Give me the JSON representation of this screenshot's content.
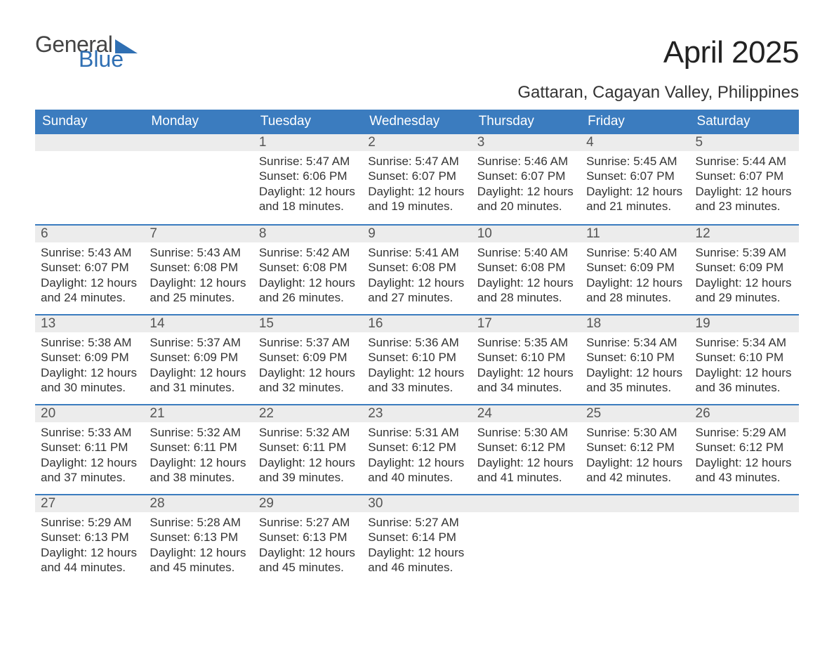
{
  "brand": {
    "word1": "General",
    "word2": "Blue"
  },
  "title": "April 2025",
  "location": "Gattaran, Cagayan Valley, Philippines",
  "colors": {
    "header_bg": "#3b7cbf",
    "header_text": "#ffffff",
    "week_border": "#3b7cbf",
    "daynum_bg": "#ececec",
    "daynum_text": "#555555",
    "body_text": "#333333",
    "background": "#ffffff",
    "logo_blue": "#2f6fb3",
    "logo_gray": "#444444"
  },
  "typography": {
    "title_fontsize": 44,
    "subtitle_fontsize": 24,
    "header_fontsize": 19,
    "daynum_fontsize": 19,
    "body_fontsize": 17,
    "logo_fontsize": 32
  },
  "day_labels": [
    "Sunday",
    "Monday",
    "Tuesday",
    "Wednesday",
    "Thursday",
    "Friday",
    "Saturday"
  ],
  "labels": {
    "sunrise": "Sunrise:",
    "sunset": "Sunset:",
    "daylight": "Daylight:"
  },
  "weeks": [
    [
      null,
      null,
      {
        "n": "1",
        "sunrise": "5:47 AM",
        "sunset": "6:06 PM",
        "daylight": "12 hours and 18 minutes."
      },
      {
        "n": "2",
        "sunrise": "5:47 AM",
        "sunset": "6:07 PM",
        "daylight": "12 hours and 19 minutes."
      },
      {
        "n": "3",
        "sunrise": "5:46 AM",
        "sunset": "6:07 PM",
        "daylight": "12 hours and 20 minutes."
      },
      {
        "n": "4",
        "sunrise": "5:45 AM",
        "sunset": "6:07 PM",
        "daylight": "12 hours and 21 minutes."
      },
      {
        "n": "5",
        "sunrise": "5:44 AM",
        "sunset": "6:07 PM",
        "daylight": "12 hours and 23 minutes."
      }
    ],
    [
      {
        "n": "6",
        "sunrise": "5:43 AM",
        "sunset": "6:07 PM",
        "daylight": "12 hours and 24 minutes."
      },
      {
        "n": "7",
        "sunrise": "5:43 AM",
        "sunset": "6:08 PM",
        "daylight": "12 hours and 25 minutes."
      },
      {
        "n": "8",
        "sunrise": "5:42 AM",
        "sunset": "6:08 PM",
        "daylight": "12 hours and 26 minutes."
      },
      {
        "n": "9",
        "sunrise": "5:41 AM",
        "sunset": "6:08 PM",
        "daylight": "12 hours and 27 minutes."
      },
      {
        "n": "10",
        "sunrise": "5:40 AM",
        "sunset": "6:08 PM",
        "daylight": "12 hours and 28 minutes."
      },
      {
        "n": "11",
        "sunrise": "5:40 AM",
        "sunset": "6:09 PM",
        "daylight": "12 hours and 28 minutes."
      },
      {
        "n": "12",
        "sunrise": "5:39 AM",
        "sunset": "6:09 PM",
        "daylight": "12 hours and 29 minutes."
      }
    ],
    [
      {
        "n": "13",
        "sunrise": "5:38 AM",
        "sunset": "6:09 PM",
        "daylight": "12 hours and 30 minutes."
      },
      {
        "n": "14",
        "sunrise": "5:37 AM",
        "sunset": "6:09 PM",
        "daylight": "12 hours and 31 minutes."
      },
      {
        "n": "15",
        "sunrise": "5:37 AM",
        "sunset": "6:09 PM",
        "daylight": "12 hours and 32 minutes."
      },
      {
        "n": "16",
        "sunrise": "5:36 AM",
        "sunset": "6:10 PM",
        "daylight": "12 hours and 33 minutes."
      },
      {
        "n": "17",
        "sunrise": "5:35 AM",
        "sunset": "6:10 PM",
        "daylight": "12 hours and 34 minutes."
      },
      {
        "n": "18",
        "sunrise": "5:34 AM",
        "sunset": "6:10 PM",
        "daylight": "12 hours and 35 minutes."
      },
      {
        "n": "19",
        "sunrise": "5:34 AM",
        "sunset": "6:10 PM",
        "daylight": "12 hours and 36 minutes."
      }
    ],
    [
      {
        "n": "20",
        "sunrise": "5:33 AM",
        "sunset": "6:11 PM",
        "daylight": "12 hours and 37 minutes."
      },
      {
        "n": "21",
        "sunrise": "5:32 AM",
        "sunset": "6:11 PM",
        "daylight": "12 hours and 38 minutes."
      },
      {
        "n": "22",
        "sunrise": "5:32 AM",
        "sunset": "6:11 PM",
        "daylight": "12 hours and 39 minutes."
      },
      {
        "n": "23",
        "sunrise": "5:31 AM",
        "sunset": "6:12 PM",
        "daylight": "12 hours and 40 minutes."
      },
      {
        "n": "24",
        "sunrise": "5:30 AM",
        "sunset": "6:12 PM",
        "daylight": "12 hours and 41 minutes."
      },
      {
        "n": "25",
        "sunrise": "5:30 AM",
        "sunset": "6:12 PM",
        "daylight": "12 hours and 42 minutes."
      },
      {
        "n": "26",
        "sunrise": "5:29 AM",
        "sunset": "6:12 PM",
        "daylight": "12 hours and 43 minutes."
      }
    ],
    [
      {
        "n": "27",
        "sunrise": "5:29 AM",
        "sunset": "6:13 PM",
        "daylight": "12 hours and 44 minutes."
      },
      {
        "n": "28",
        "sunrise": "5:28 AM",
        "sunset": "6:13 PM",
        "daylight": "12 hours and 45 minutes."
      },
      {
        "n": "29",
        "sunrise": "5:27 AM",
        "sunset": "6:13 PM",
        "daylight": "12 hours and 45 minutes."
      },
      {
        "n": "30",
        "sunrise": "5:27 AM",
        "sunset": "6:14 PM",
        "daylight": "12 hours and 46 minutes."
      },
      null,
      null,
      null
    ]
  ]
}
